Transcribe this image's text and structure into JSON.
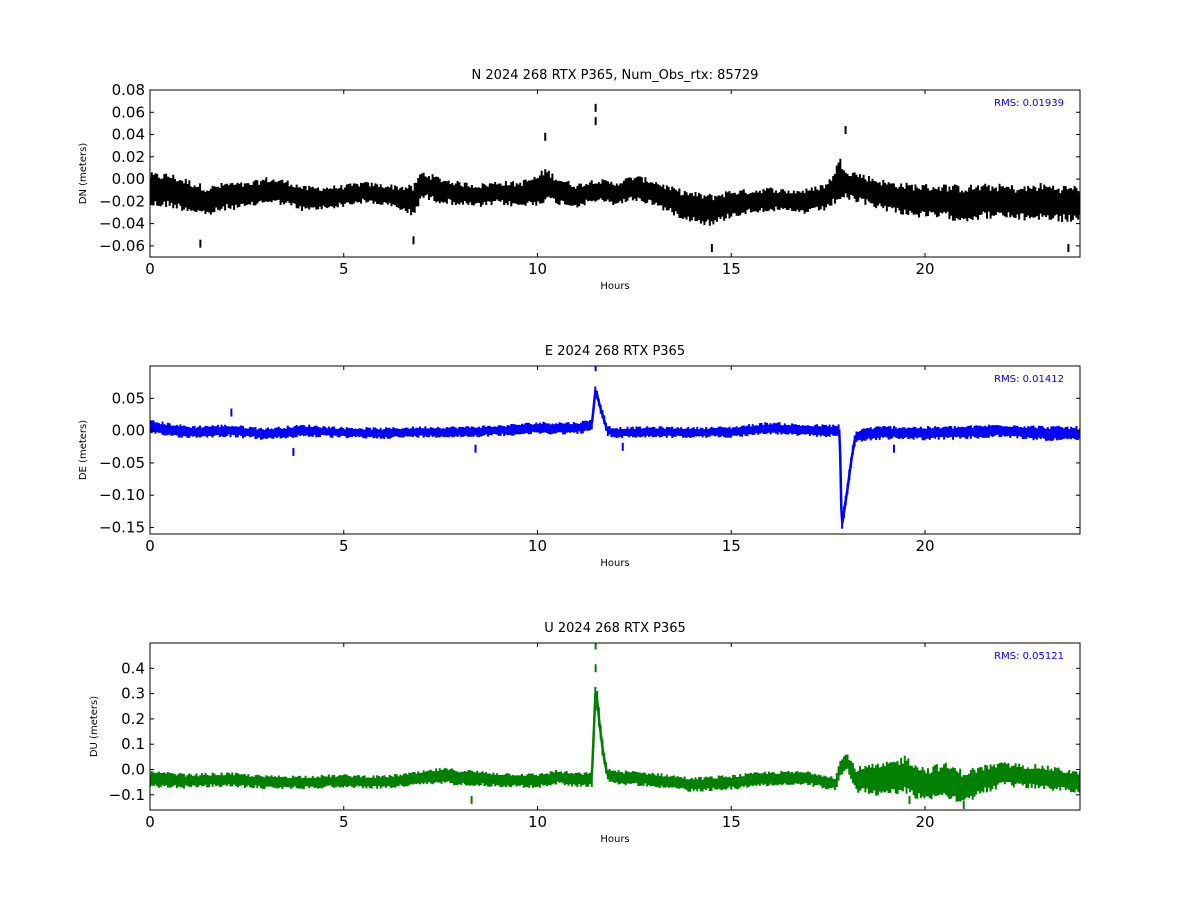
{
  "chart_data": [
    {
      "type": "scatter",
      "title": "N 2024 268 RTX  P365, Num_Obs_rtx: 85729",
      "xlabel": "Hours",
      "ylabel": "DN (meters)",
      "xlim": [
        0,
        24
      ],
      "ylim": [
        -0.07,
        0.08
      ],
      "xticks": [
        0,
        5,
        10,
        15,
        20
      ],
      "xtick_labels": [
        "0",
        "5",
        "10",
        "15",
        "20"
      ],
      "yticks": [
        -0.06,
        -0.04,
        -0.02,
        0.0,
        0.02,
        0.04,
        0.06,
        0.08
      ],
      "ytick_labels": [
        "−0.06",
        "−0.04",
        "−0.02",
        "0.00",
        "0.02",
        "0.04",
        "0.06",
        "0.08"
      ],
      "color": "#000000",
      "annotation": "RMS:  0.01939",
      "annotation_color": "#0000ff",
      "grid": false,
      "series": [
        {
          "x": [
            0,
            0.5,
            1,
            1.5,
            2,
            2.5,
            3,
            3.5,
            4,
            4.5,
            5,
            5.5,
            6,
            6.5,
            6.8,
            7,
            7.5,
            8,
            8.5,
            9,
            9.5,
            10,
            10.2,
            10.5,
            11,
            11.5,
            12,
            12.5,
            13,
            13.5,
            14,
            14.5,
            15,
            15.5,
            16,
            16.5,
            17,
            17.5,
            17.8,
            18,
            18.5,
            19,
            19.5,
            20,
            20.5,
            21,
            21.5,
            22,
            22.5,
            23,
            23.5,
            24
          ],
          "y": [
            -0.01,
            -0.01,
            -0.015,
            -0.02,
            -0.015,
            -0.015,
            -0.01,
            -0.012,
            -0.018,
            -0.017,
            -0.015,
            -0.012,
            -0.014,
            -0.017,
            -0.02,
            -0.005,
            -0.01,
            -0.013,
            -0.015,
            -0.012,
            -0.014,
            -0.01,
            -0.005,
            -0.01,
            -0.015,
            -0.01,
            -0.013,
            -0.008,
            -0.012,
            -0.02,
            -0.025,
            -0.028,
            -0.022,
            -0.02,
            -0.018,
            -0.02,
            -0.02,
            -0.015,
            0.0,
            -0.005,
            -0.01,
            -0.015,
            -0.018,
            -0.02,
            -0.02,
            -0.022,
            -0.02,
            -0.02,
            -0.022,
            -0.02,
            -0.022,
            -0.022
          ],
          "spread": [
            0.016,
            0.016,
            0.015,
            0.014,
            0.013,
            0.012,
            0.012,
            0.012,
            0.012,
            0.011,
            0.01,
            0.01,
            0.01,
            0.012,
            0.015,
            0.013,
            0.012,
            0.011,
            0.011,
            0.011,
            0.012,
            0.014,
            0.016,
            0.013,
            0.011,
            0.011,
            0.011,
            0.012,
            0.012,
            0.013,
            0.014,
            0.015,
            0.013,
            0.011,
            0.011,
            0.011,
            0.012,
            0.013,
            0.02,
            0.015,
            0.014,
            0.014,
            0.015,
            0.016,
            0.016,
            0.017,
            0.016,
            0.016,
            0.016,
            0.017,
            0.017,
            0.017
          ]
        }
      ],
      "outliers": [
        [
          11.5,
          0.064
        ],
        [
          11.5,
          0.052
        ],
        [
          10.2,
          0.038
        ],
        [
          17.95,
          0.044
        ],
        [
          6.8,
          -0.055
        ],
        [
          14.5,
          -0.062
        ],
        [
          1.3,
          -0.058
        ],
        [
          23.7,
          -0.062
        ]
      ]
    },
    {
      "type": "scatter",
      "title": "E 2024 268 RTX  P365",
      "xlabel": "Hours",
      "ylabel": "DE (meters)",
      "xlim": [
        0,
        24
      ],
      "ylim": [
        -0.16,
        0.1
      ],
      "xticks": [
        0,
        5,
        10,
        15,
        20
      ],
      "xtick_labels": [
        "0",
        "5",
        "10",
        "15",
        "20"
      ],
      "yticks": [
        -0.15,
        -0.1,
        -0.05,
        0.0,
        0.05
      ],
      "ytick_labels": [
        "−0.15",
        "−0.10",
        "−0.05",
        "0.00",
        "0.05"
      ],
      "color": "#0000ff",
      "annotation": "RMS:  0.01412",
      "annotation_color": "#0000ff",
      "grid": false,
      "series": [
        {
          "x": [
            0,
            1,
            2,
            3,
            4,
            5,
            6,
            7,
            8,
            9,
            10,
            11,
            11.4,
            11.5,
            11.6,
            11.8,
            12,
            13,
            14,
            15,
            16,
            17,
            17.8,
            17.85,
            17.9,
            18,
            18.1,
            18.2,
            18.5,
            19,
            20,
            21,
            22,
            23,
            24
          ],
          "y": [
            0.005,
            -0.002,
            0.0,
            -0.005,
            0.0,
            -0.003,
            -0.004,
            -0.002,
            -0.002,
            0.0,
            0.004,
            0.004,
            0.008,
            0.065,
            0.04,
            0.0,
            -0.003,
            -0.002,
            -0.003,
            -0.002,
            0.004,
            0.0,
            0.0,
            -0.15,
            -0.13,
            -0.09,
            -0.045,
            -0.01,
            -0.005,
            -0.003,
            -0.004,
            -0.003,
            0.0,
            -0.004,
            -0.005
          ],
          "spread": [
            0.012,
            0.01,
            0.01,
            0.01,
            0.01,
            0.009,
            0.009,
            0.009,
            0.009,
            0.009,
            0.01,
            0.01,
            0.01,
            0.008,
            0.008,
            0.009,
            0.009,
            0.009,
            0.009,
            0.009,
            0.01,
            0.01,
            0.01,
            0.01,
            0.01,
            0.01,
            0.01,
            0.01,
            0.011,
            0.011,
            0.011,
            0.011,
            0.011,
            0.012,
            0.012
          ]
        }
      ],
      "outliers": [
        [
          11.5,
          0.098
        ],
        [
          2.1,
          0.028
        ],
        [
          3.7,
          -0.033
        ],
        [
          8.4,
          -0.028
        ],
        [
          12.2,
          -0.025
        ],
        [
          19.2,
          -0.028
        ]
      ]
    },
    {
      "type": "scatter",
      "title": "U 2024 268 RTX  P365",
      "xlabel": "Hours",
      "ylabel": "DU (meters)",
      "xlim": [
        0,
        24
      ],
      "ylim": [
        -0.16,
        0.5
      ],
      "xticks": [
        0,
        5,
        10,
        15,
        20
      ],
      "xtick_labels": [
        "0",
        "5",
        "10",
        "15",
        "20"
      ],
      "yticks": [
        -0.1,
        0.0,
        0.1,
        0.2,
        0.3,
        0.4
      ],
      "ytick_labels": [
        "−0.1",
        "0.0",
        "0.1",
        "0.2",
        "0.3",
        "0.4"
      ],
      "color": "#008000",
      "annotation": "RMS:  0.05121",
      "annotation_color": "#0000ff",
      "grid": false,
      "series": [
        {
          "x": [
            0,
            1,
            2,
            3,
            4,
            5,
            6,
            7,
            7.5,
            8,
            9,
            10,
            10.5,
            11,
            11.4,
            11.5,
            11.55,
            11.6,
            11.7,
            11.8,
            12,
            13,
            14,
            15,
            16,
            17,
            17.7,
            17.8,
            18,
            18.2,
            18.5,
            19,
            19.5,
            20,
            20.5,
            21,
            21.5,
            22,
            23,
            24
          ],
          "y": [
            -0.04,
            -0.045,
            -0.04,
            -0.05,
            -0.05,
            -0.045,
            -0.05,
            -0.035,
            -0.025,
            -0.03,
            -0.04,
            -0.045,
            -0.03,
            -0.04,
            -0.04,
            0.32,
            0.26,
            0.18,
            0.06,
            -0.02,
            -0.03,
            -0.04,
            -0.06,
            -0.05,
            -0.035,
            -0.035,
            -0.055,
            0.0,
            0.03,
            -0.04,
            -0.04,
            -0.04,
            -0.02,
            -0.06,
            -0.04,
            -0.07,
            -0.04,
            -0.02,
            -0.03,
            -0.05
          ],
          "spread": [
            0.035,
            0.03,
            0.03,
            0.028,
            0.028,
            0.027,
            0.027,
            0.03,
            0.033,
            0.033,
            0.03,
            0.03,
            0.03,
            0.03,
            0.03,
            0.06,
            0.05,
            0.04,
            0.03,
            0.03,
            0.03,
            0.03,
            0.03,
            0.03,
            0.03,
            0.03,
            0.03,
            0.04,
            0.04,
            0.05,
            0.06,
            0.07,
            0.08,
            0.07,
            0.07,
            0.07,
            0.06,
            0.05,
            0.05,
            0.045
          ]
        }
      ],
      "outliers": [
        [
          11.5,
          0.49
        ],
        [
          11.5,
          0.4
        ],
        [
          8.3,
          -0.12
        ],
        [
          21,
          -0.14
        ],
        [
          19.6,
          -0.12
        ]
      ]
    }
  ]
}
